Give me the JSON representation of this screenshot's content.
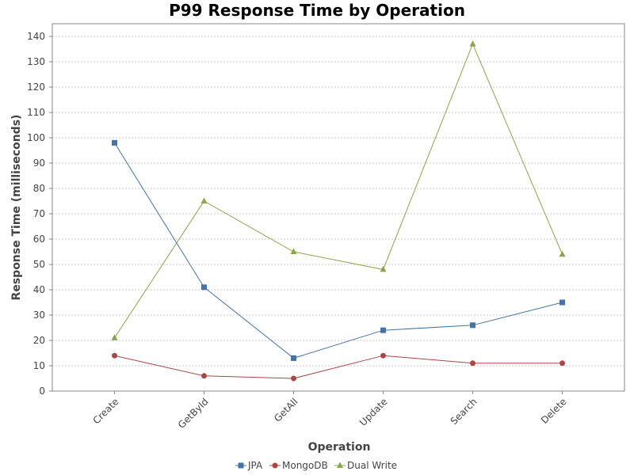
{
  "chart_data": {
    "type": "line",
    "title": "P99 Response Time by Operation",
    "xlabel": "Operation",
    "ylabel": "Response Time (milliseconds)",
    "categories": [
      "Create",
      "GetById",
      "GetAll",
      "Update",
      "Search",
      "Delete"
    ],
    "ylim": [
      0,
      140
    ],
    "yticks": [
      0,
      10,
      20,
      30,
      40,
      50,
      60,
      70,
      80,
      90,
      100,
      110,
      120,
      130,
      140
    ],
    "grid": true,
    "legend_position": "bottom",
    "series": [
      {
        "name": "JPA",
        "marker": "square",
        "color": "#4572A7",
        "values": [
          98,
          41,
          13,
          24,
          26,
          35
        ]
      },
      {
        "name": "MongoDB",
        "marker": "circle",
        "color": "#AA4643",
        "values": [
          14,
          6,
          5,
          14,
          11,
          11
        ]
      },
      {
        "name": "Dual Write",
        "marker": "triangle",
        "color": "#89A54E",
        "values": [
          21,
          75,
          55,
          48,
          137,
          54
        ]
      }
    ]
  }
}
